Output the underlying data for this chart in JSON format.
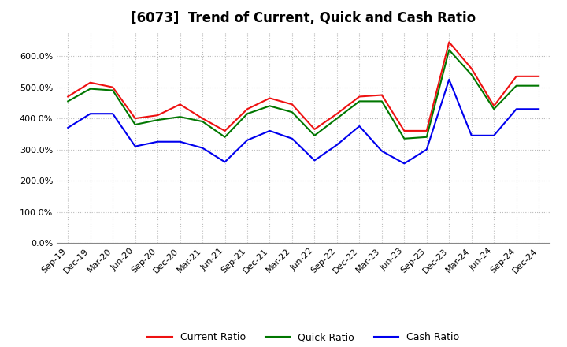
{
  "title": "[6073]  Trend of Current, Quick and Cash Ratio",
  "x_labels": [
    "Sep-19",
    "Dec-19",
    "Mar-20",
    "Jun-20",
    "Sep-20",
    "Dec-20",
    "Mar-21",
    "Jun-21",
    "Sep-21",
    "Dec-21",
    "Mar-22",
    "Jun-22",
    "Sep-22",
    "Dec-22",
    "Mar-23",
    "Jun-23",
    "Sep-23",
    "Dec-23",
    "Mar-24",
    "Jun-24",
    "Sep-24",
    "Dec-24"
  ],
  "current_ratio": [
    470,
    515,
    500,
    400,
    410,
    445,
    400,
    360,
    430,
    465,
    445,
    365,
    415,
    470,
    475,
    360,
    360,
    645,
    560,
    440,
    535,
    535
  ],
  "quick_ratio": [
    455,
    495,
    490,
    380,
    395,
    405,
    390,
    340,
    415,
    440,
    420,
    345,
    400,
    455,
    455,
    335,
    340,
    620,
    540,
    430,
    505,
    505
  ],
  "cash_ratio": [
    370,
    415,
    415,
    310,
    325,
    325,
    305,
    260,
    330,
    360,
    335,
    265,
    315,
    375,
    295,
    255,
    300,
    525,
    345,
    345,
    430,
    430
  ],
  "current_color": "#EE1111",
  "quick_color": "#007700",
  "cash_color": "#0000EE",
  "legend_labels": [
    "Current Ratio",
    "Quick Ratio",
    "Cash Ratio"
  ],
  "ylim": [
    0,
    680
  ],
  "yticks": [
    0,
    100,
    200,
    300,
    400,
    500,
    600
  ],
  "ytick_labels": [
    "0.0%",
    "100.0%",
    "200.0%",
    "300.0%",
    "400.0%",
    "500.0%",
    "600.0%"
  ],
  "background_color": "#FFFFFF",
  "grid_color": "#BBBBBB",
  "title_fontsize": 12,
  "axis_fontsize": 8,
  "legend_fontsize": 9
}
